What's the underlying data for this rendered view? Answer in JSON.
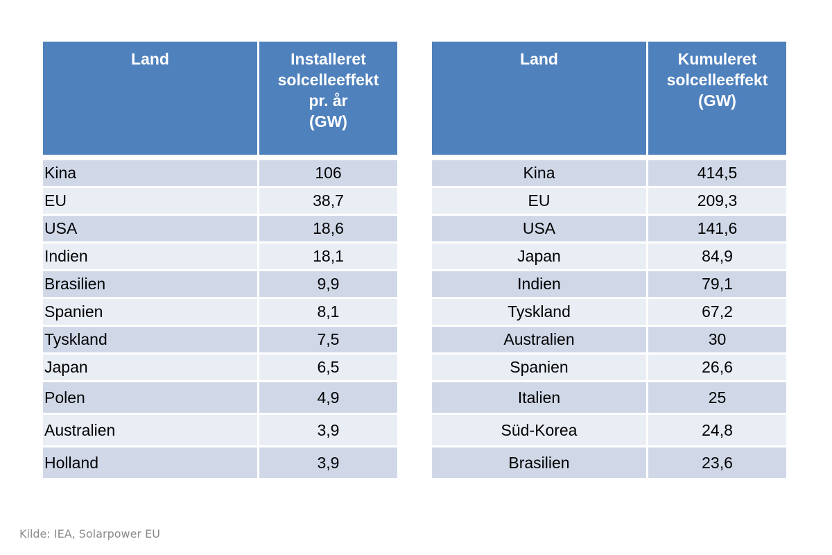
{
  "chart_data": [
    {
      "type": "table",
      "columns": [
        "Land",
        "Installeret solcelleeffekt pr. år (GW)"
      ],
      "header_lines": [
        "Installeret",
        "solcelleeffekt",
        "pr. år",
        "(GW)"
      ],
      "rows": [
        [
          "Kina",
          "106"
        ],
        [
          "EU",
          "38,7"
        ],
        [
          "USA",
          "18,6"
        ],
        [
          "Indien",
          "18,1"
        ],
        [
          "Brasilien",
          "9,9"
        ],
        [
          "Spanien",
          "8,1"
        ],
        [
          "Tyskland",
          "7,5"
        ],
        [
          "Japan",
          "6,5"
        ],
        [
          "Polen",
          "4,9"
        ],
        [
          "Australien",
          "3,9"
        ],
        [
          "Holland",
          "3,9"
        ]
      ]
    },
    {
      "type": "table",
      "columns": [
        "Land",
        "Kumuleret solcelleeffekt (GW)"
      ],
      "header_lines": [
        "Kumuleret",
        "solcelleeffekt",
        "(GW)"
      ],
      "rows": [
        [
          "Kina",
          "414,5"
        ],
        [
          "EU",
          "209,3"
        ],
        [
          "USA",
          "141,6"
        ],
        [
          "Japan",
          "84,9"
        ],
        [
          "Indien",
          "79,1"
        ],
        [
          "Tyskland",
          "67,2"
        ],
        [
          "Australien",
          "30"
        ],
        [
          "Spanien",
          "26,6"
        ],
        [
          "Italien",
          "25"
        ],
        [
          "Süd-Korea",
          "24,8"
        ],
        [
          "Brasilien",
          "23,6"
        ]
      ]
    }
  ],
  "source_note": "Kilde: IEA, Solarpower EU",
  "colors": {
    "header_bg": "#4f81bd",
    "row_odd": "#d0d8e8",
    "row_even": "#e9edf4"
  }
}
